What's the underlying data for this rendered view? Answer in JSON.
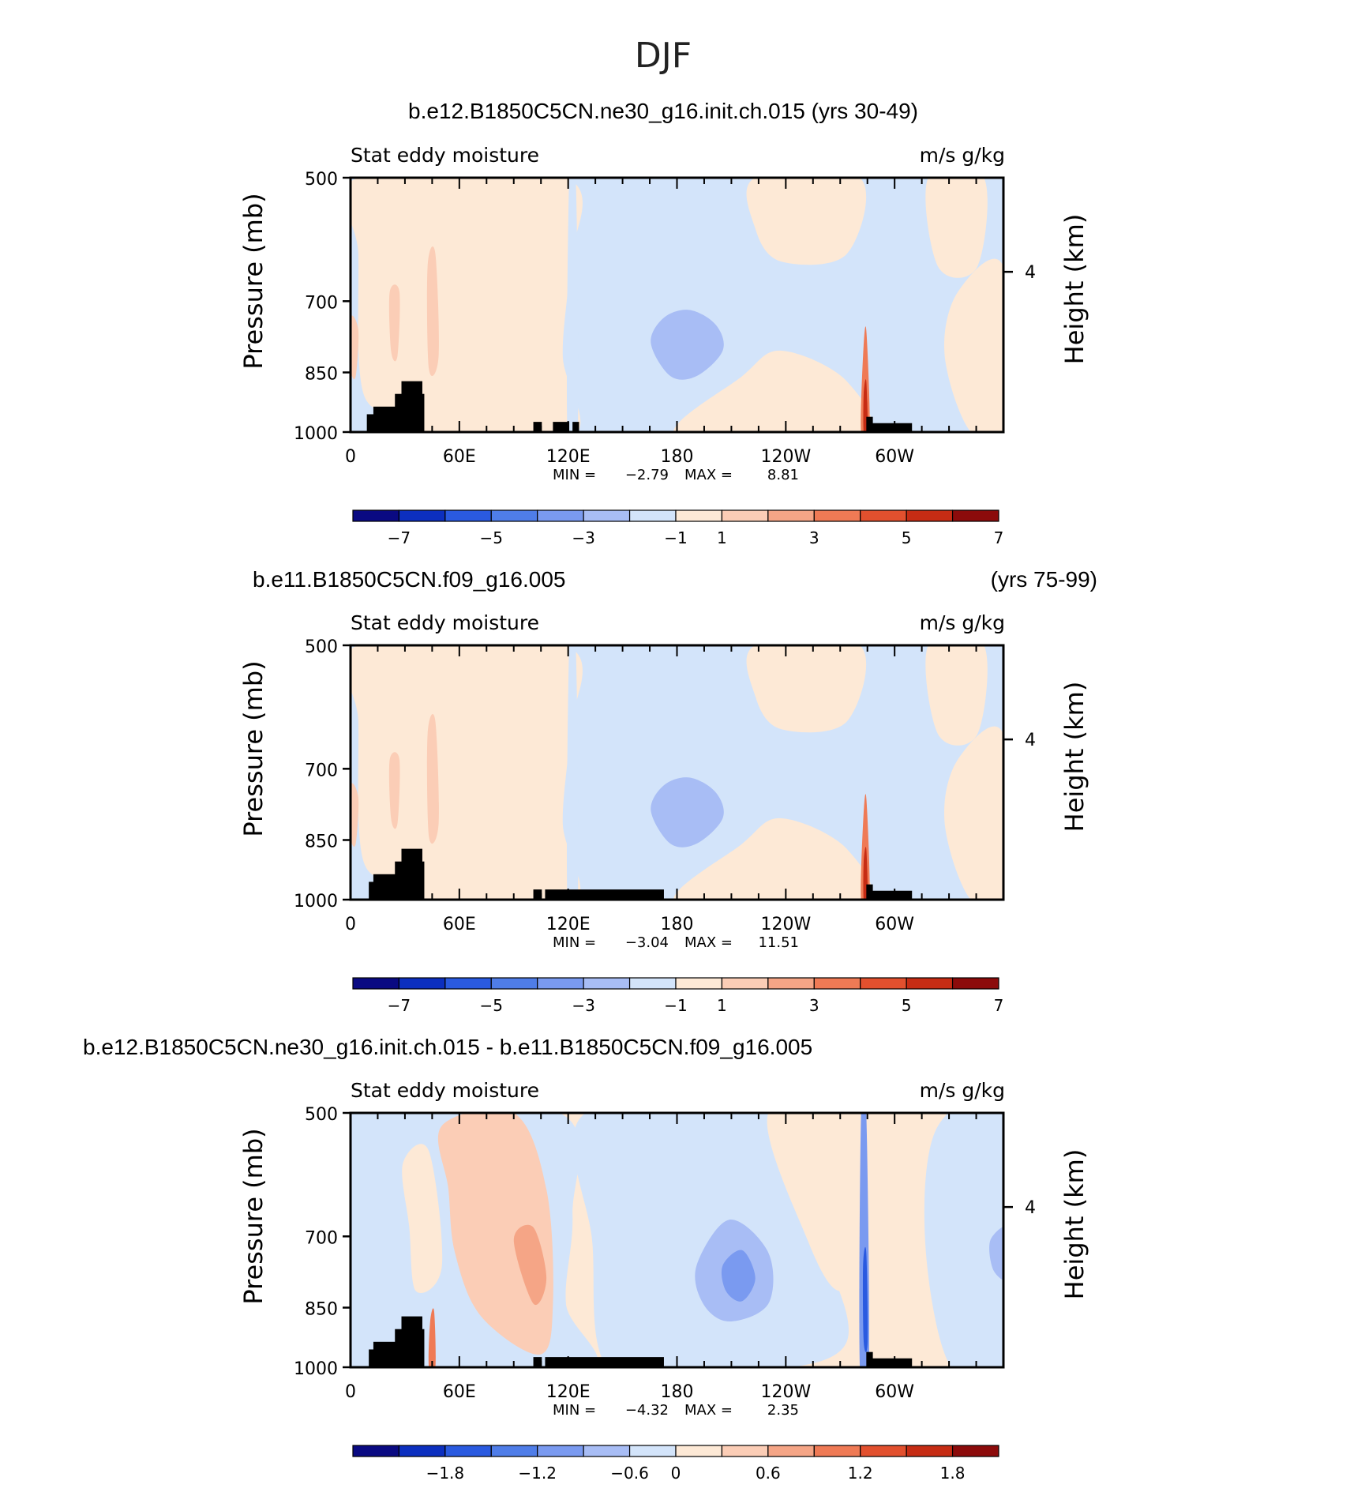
{
  "season": "DJF",
  "colors": {
    "blue": [
      "#0a0a82",
      "#0c2fbf",
      "#2a5ae0",
      "#4f7de8",
      "#7a9af0",
      "#a8bdf5",
      "#d3e4fa"
    ],
    "red": [
      "#fde9d6",
      "#fbcdb6",
      "#f5a586",
      "#ef7a55",
      "#e2502e",
      "#c62c14",
      "#8c0b0b"
    ],
    "land": "#000000"
  },
  "panels": [
    {
      "title": "b.e12.B1850C5CN.ne30_g16.init.ch.015 (yrs 30-49)",
      "title_right": "",
      "left_label": "Stat eddy moisture",
      "right_label": "m/s g/kg",
      "y_axis_label": "Pressure (mb)",
      "y2_axis_label": "Height (km)",
      "min_label": "MIN =",
      "min_value": "−2.79",
      "max_label": "MAX =",
      "max_value": "8.81",
      "colorbar_labels": [
        "−7",
        "−5",
        "−3",
        "−1",
        "1",
        "3",
        "5",
        "7"
      ]
    },
    {
      "title": "b.e11.B1850C5CN.f09_g16.005",
      "title_right": "(yrs 75-99)",
      "left_label": "Stat eddy moisture",
      "right_label": "m/s g/kg",
      "y_axis_label": "Pressure (mb)",
      "y2_axis_label": "Height (km)",
      "min_label": "MIN =",
      "min_value": "−3.04",
      "max_label": "MAX =",
      "max_value": "11.51",
      "colorbar_labels": [
        "−7",
        "−5",
        "−3",
        "−1",
        "1",
        "3",
        "5",
        "7"
      ]
    },
    {
      "title": "b.e12.B1850C5CN.ne30_g16.init.ch.015 - b.e11.B1850C5CN.f09_g16.005",
      "title_right": "",
      "left_label": "Stat eddy moisture",
      "right_label": "m/s g/kg",
      "y_axis_label": "Pressure (mb)",
      "y2_axis_label": "Height (km)",
      "min_label": "MIN =",
      "min_value": "−4.32",
      "max_label": "MAX =",
      "max_value": "2.35",
      "colorbar_labels": [
        "−1.8",
        "−1.2",
        "−0.6",
        "0",
        "0.6",
        "1.2",
        "1.8"
      ]
    }
  ],
  "chart_data": [
    {
      "type": "heatmap",
      "title": "b.e12.B1850C5CN.ne30_g16.init.ch.015 (yrs 30-49)",
      "variable": "Stat eddy moisture",
      "units": "m/s g/kg",
      "xlabel": "",
      "x_ticks": [
        {
          "lon": 0,
          "label": "0"
        },
        {
          "lon": 60,
          "label": "60E"
        },
        {
          "lon": 120,
          "label": "120E"
        },
        {
          "lon": 180,
          "label": "180"
        },
        {
          "lon": 240,
          "label": "120W"
        },
        {
          "lon": 300,
          "label": "60W"
        }
      ],
      "xlim": [
        0,
        360
      ],
      "ylabel": "Pressure (mb)",
      "y_ticks": [
        500,
        700,
        850,
        1000
      ],
      "ylim": [
        500,
        1000
      ],
      "y2label": "Height (km)",
      "y2_ticks": [
        {
          "height_km": 4,
          "label": "4"
        }
      ],
      "min": -2.79,
      "max": 8.81,
      "levels": [
        -8,
        -7,
        -6,
        -5,
        -4,
        -3,
        -2,
        -1,
        1,
        2,
        3,
        4,
        5,
        6,
        7,
        8
      ],
      "colorbar_labels": [
        "−7",
        "−5",
        "−3",
        "−1",
        "1",
        "3",
        "5",
        "7"
      ]
    },
    {
      "type": "heatmap",
      "title": "b.e11.B1850C5CN.f09_g16.005 (yrs 75-99)",
      "variable": "Stat eddy moisture",
      "units": "m/s g/kg",
      "xlabel": "",
      "x_ticks": [
        {
          "lon": 0,
          "label": "0"
        },
        {
          "lon": 60,
          "label": "60E"
        },
        {
          "lon": 120,
          "label": "120E"
        },
        {
          "lon": 180,
          "label": "180"
        },
        {
          "lon": 240,
          "label": "120W"
        },
        {
          "lon": 300,
          "label": "60W"
        }
      ],
      "xlim": [
        0,
        360
      ],
      "ylabel": "Pressure (mb)",
      "y_ticks": [
        500,
        700,
        850,
        1000
      ],
      "ylim": [
        500,
        1000
      ],
      "y2label": "Height (km)",
      "y2_ticks": [
        {
          "height_km": 4,
          "label": "4"
        }
      ],
      "min": -3.04,
      "max": 11.51,
      "levels": [
        -8,
        -7,
        -6,
        -5,
        -4,
        -3,
        -2,
        -1,
        1,
        2,
        3,
        4,
        5,
        6,
        7,
        8
      ],
      "colorbar_labels": [
        "−7",
        "−5",
        "−3",
        "−1",
        "1",
        "3",
        "5",
        "7"
      ]
    },
    {
      "type": "heatmap",
      "title": "b.e12.B1850C5CN.ne30_g16.init.ch.015 - b.e11.B1850C5CN.f09_g16.005",
      "variable": "Stat eddy moisture",
      "units": "m/s g/kg",
      "xlabel": "",
      "x_ticks": [
        {
          "lon": 0,
          "label": "0"
        },
        {
          "lon": 60,
          "label": "60E"
        },
        {
          "lon": 120,
          "label": "120E"
        },
        {
          "lon": 180,
          "label": "180"
        },
        {
          "lon": 240,
          "label": "120W"
        },
        {
          "lon": 300,
          "label": "60W"
        }
      ],
      "xlim": [
        0,
        360
      ],
      "ylabel": "Pressure (mb)",
      "y_ticks": [
        500,
        700,
        850,
        1000
      ],
      "ylim": [
        500,
        1000
      ],
      "y2label": "Height (km)",
      "y2_ticks": [
        {
          "height_km": 4,
          "label": "4"
        }
      ],
      "min": -4.32,
      "max": 2.35,
      "levels": [
        -2.4,
        -2.1,
        -1.8,
        -1.5,
        -1.2,
        -0.9,
        -0.6,
        -0.3,
        0,
        0.3,
        0.6,
        0.9,
        1.2,
        1.5,
        1.8,
        2.1,
        2.4
      ],
      "colorbar_labels": [
        "−1.8",
        "−1.2",
        "−0.6",
        "0",
        "0.6",
        "1.2",
        "1.8"
      ]
    }
  ]
}
